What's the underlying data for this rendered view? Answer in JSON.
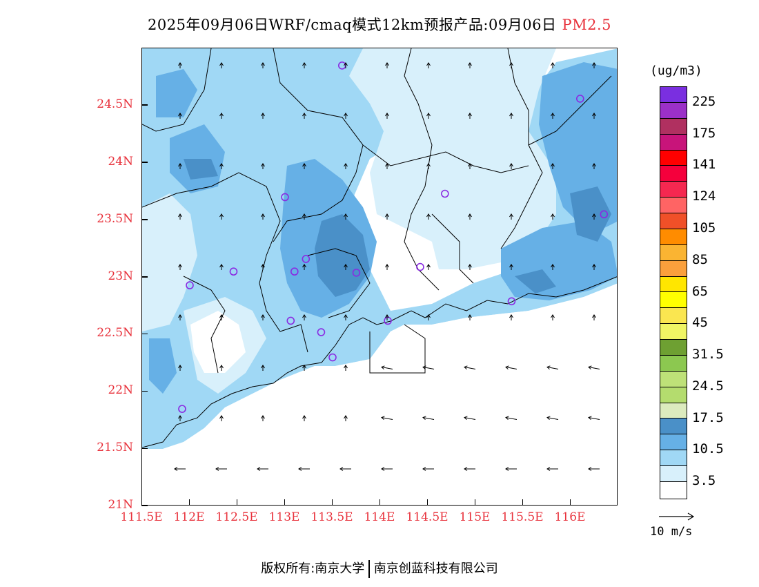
{
  "title": {
    "main": "2025年09月06日WRF/cmaq模式12km预报产品:09月06日",
    "pollutant": "PM2.5"
  },
  "map": {
    "lon_range": [
      111.5,
      116.5
    ],
    "lat_range": [
      21.0,
      25.0
    ],
    "lat_ticks": [
      {
        "value": 24.5,
        "label": "24.5N"
      },
      {
        "value": 24.0,
        "label": "24N"
      },
      {
        "value": 23.5,
        "label": "23.5N"
      },
      {
        "value": 23.0,
        "label": "23N"
      },
      {
        "value": 22.5,
        "label": "22.5N"
      },
      {
        "value": 22.0,
        "label": "22N"
      },
      {
        "value": 21.5,
        "label": "21.5N"
      },
      {
        "value": 21.0,
        "label": "21N"
      }
    ],
    "lon_ticks": [
      {
        "value": 111.5,
        "label": "111.5E"
      },
      {
        "value": 112.0,
        "label": "112E"
      },
      {
        "value": 112.5,
        "label": "112.5E"
      },
      {
        "value": 113.0,
        "label": "113E"
      },
      {
        "value": 113.5,
        "label": "113.5E"
      },
      {
        "value": 114.0,
        "label": "114E"
      },
      {
        "value": 114.5,
        "label": "114.5E"
      },
      {
        "value": 115.0,
        "label": "115E"
      },
      {
        "value": 115.5,
        "label": "115.5E"
      },
      {
        "value": 116.0,
        "label": "116E"
      }
    ],
    "stations": [
      {
        "lon": 113.6,
        "lat": 24.85
      },
      {
        "lon": 116.1,
        "lat": 24.56
      },
      {
        "lon": 113.0,
        "lat": 23.7
      },
      {
        "lon": 114.68,
        "lat": 23.73
      },
      {
        "lon": 116.35,
        "lat": 23.55
      },
      {
        "lon": 113.22,
        "lat": 23.16
      },
      {
        "lon": 112.46,
        "lat": 23.05
      },
      {
        "lon": 113.1,
        "lat": 23.05
      },
      {
        "lon": 113.75,
        "lat": 23.04
      },
      {
        "lon": 114.42,
        "lat": 23.09
      },
      {
        "lon": 112.0,
        "lat": 22.93
      },
      {
        "lon": 115.38,
        "lat": 22.79
      },
      {
        "lon": 113.06,
        "lat": 22.62
      },
      {
        "lon": 114.08,
        "lat": 22.62
      },
      {
        "lon": 113.38,
        "lat": 22.52
      },
      {
        "lon": 113.5,
        "lat": 22.3
      },
      {
        "lon": 111.92,
        "lat": 21.85
      }
    ]
  },
  "colorbar": {
    "unit": "(ug/m3)",
    "colors": [
      "#7a2fe0",
      "#9b30c8",
      "#b03060",
      "#c8147a",
      "#ff0000",
      "#f5003c",
      "#f52850",
      "#ff6464",
      "#f05028",
      "#ff8c00",
      "#fab432",
      "#faa03c",
      "#ffe600",
      "#ffff00",
      "#fae650",
      "#f0f564",
      "#6ea032",
      "#8cc850",
      "#bee178",
      "#b4dc6e",
      "#dcebbe",
      "#4a90c8",
      "#66b0e6",
      "#a0d8f5",
      "#d8f0fb",
      "#ffffff"
    ],
    "labels": [
      "225",
      "175",
      "141",
      "124",
      "105",
      "85",
      "65",
      "45",
      "31.5",
      "24.5",
      "17.5",
      "10.5",
      "3.5"
    ]
  },
  "wind_reference": {
    "label": "10 m/s"
  },
  "footer": {
    "left": "版权所有:南京大学",
    "right": "南京创蓝科技有限公司"
  }
}
